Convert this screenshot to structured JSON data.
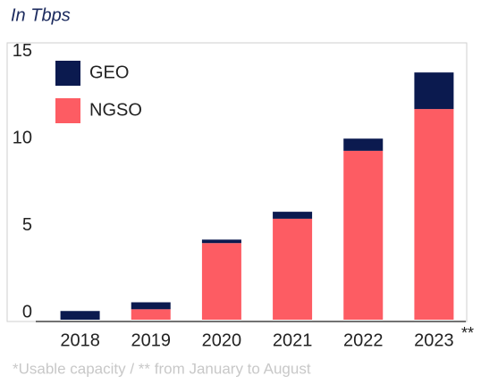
{
  "chart_data": {
    "type": "stacked_bar",
    "title": "In Tbps",
    "categories": [
      "2018",
      "2019",
      "2020",
      "2021",
      "2022",
      "2023"
    ],
    "series": [
      {
        "name": "NGSO",
        "color": "#fd5c63",
        "values": [
          0,
          0.6,
          4.4,
          5.8,
          9.7,
          12.1
        ]
      },
      {
        "name": "GEO",
        "color": "#0b1a4f",
        "values": [
          0.5,
          0.4,
          0.2,
          0.4,
          0.7,
          2.1
        ]
      }
    ],
    "ylim": [
      0,
      15.9
    ],
    "yticks": [
      0,
      5,
      10,
      15
    ],
    "annotation": "**",
    "footnote": "*Usable capacity / ** from January to August"
  }
}
